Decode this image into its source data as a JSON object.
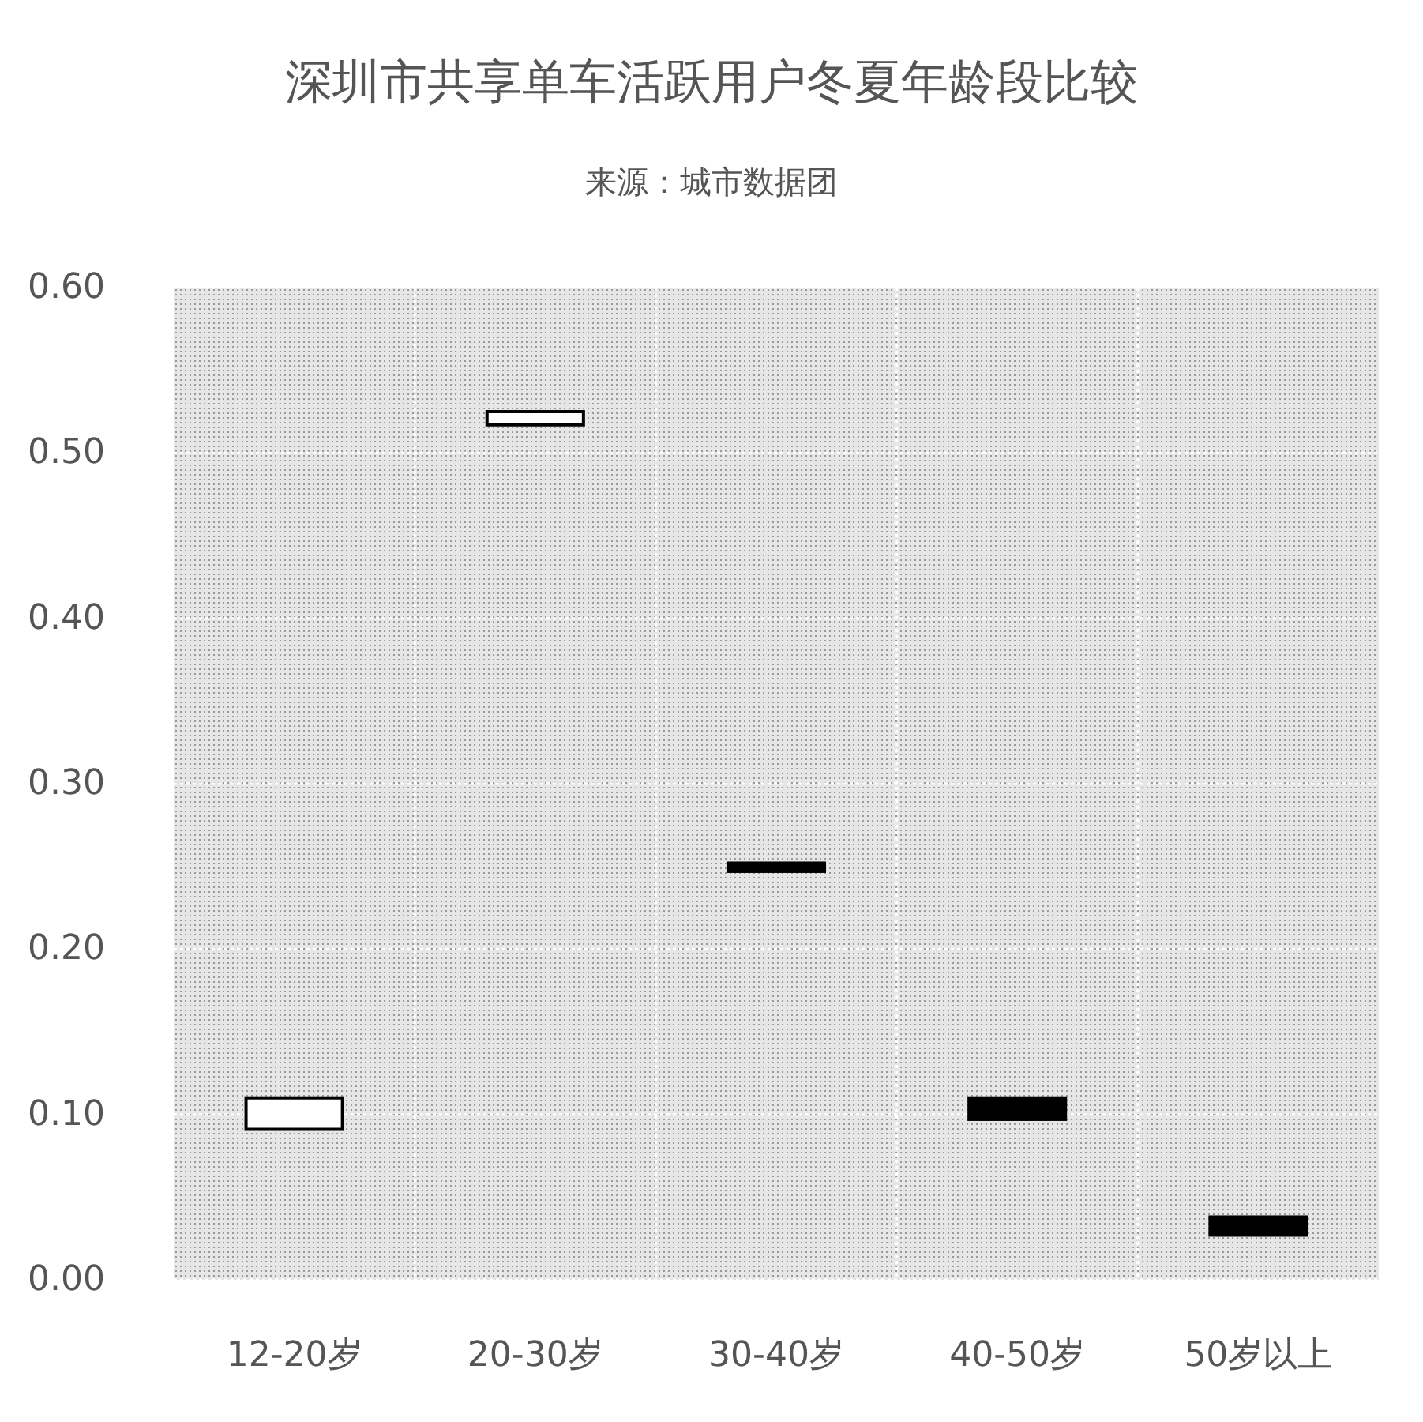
{
  "chart_data": {
    "type": "bar",
    "title": "深圳市共享单车活跃用户冬夏年龄段比较",
    "subtitle": "来源：城市数据团",
    "categories": [
      "12-20岁",
      "20-30岁",
      "30-40岁",
      "40-50岁",
      "50岁以上"
    ],
    "base": [
      0.091,
      0.517,
      0.247,
      0.097,
      0.027
    ],
    "values": [
      0.019,
      0.008,
      0.005,
      0.013,
      0.011
    ],
    "colors": [
      "#ffffff",
      "#ffffff",
      "#000000",
      "#000000",
      "#000000"
    ],
    "ylim": [
      0,
      0.6
    ],
    "yticks": [
      {
        "value": 0,
        "label": "0.00"
      },
      {
        "value": 0.1,
        "label": "0.10"
      },
      {
        "value": 0.2,
        "label": "0.20"
      },
      {
        "value": 0.3,
        "label": "0.30"
      },
      {
        "value": 0.4,
        "label": "0.40"
      },
      {
        "value": 0.5,
        "label": "0.50"
      },
      {
        "value": 0.6,
        "label": "0.60"
      }
    ],
    "grid": true
  }
}
